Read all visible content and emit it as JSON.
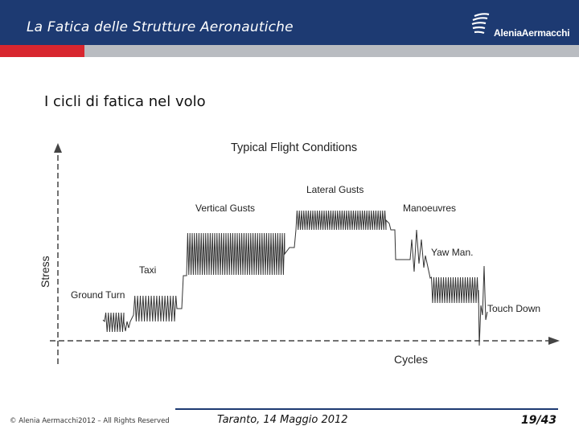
{
  "header": {
    "title": "La Fatica delle Strutture Aeronautiche",
    "logo_text": "AleniaAermacchi",
    "colors": {
      "bar": "#1d3a72",
      "red": "#d8262f",
      "gray": "#b9bcc1"
    }
  },
  "slide": {
    "title": "I cicli di fatica nel volo"
  },
  "diagram": {
    "title": "Typical Flight Conditions",
    "y_axis_label": "Stress",
    "x_axis_label": "Cycles",
    "phases": {
      "ground_turn": "Ground Turn",
      "taxi": "Taxi",
      "vertical_gusts": "Vertical Gusts",
      "lateral_gusts": "Lateral Gusts",
      "manoeuvres": "Manoeuvres",
      "yaw_man": "Yaw Man.",
      "touch_down": "Touch Down"
    }
  },
  "footer": {
    "copyright": "© Alenia Aermacchi2012 – All Rights Reserved",
    "location_date": "Taranto, 14 Maggio 2012",
    "page": "19/43"
  }
}
